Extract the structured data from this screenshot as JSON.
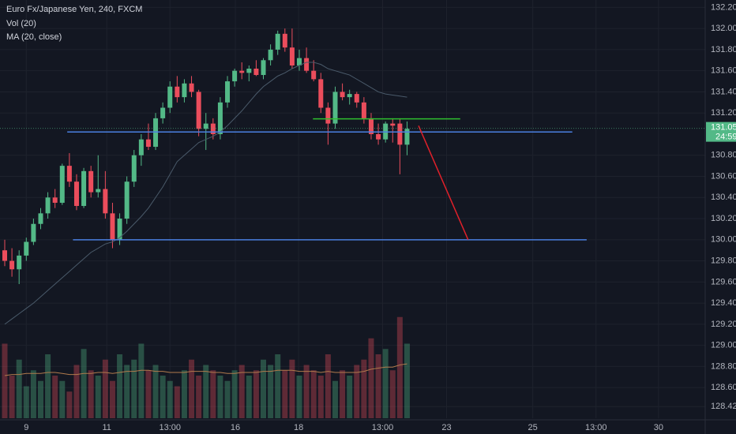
{
  "chart_data": {
    "type": "candlestick",
    "title": "Euro Fx/Japanese Yen, 240, FXCM",
    "indicators": [
      "Vol (20)",
      "MA (20, close)"
    ],
    "open": [
      129.9,
      129.8,
      129.72,
      129.85,
      129.98,
      130.15,
      130.25,
      130.4,
      130.35,
      130.7,
      130.55,
      130.32,
      130.65,
      130.45,
      130.48,
      130.25,
      130.0,
      130.2,
      130.55,
      130.8,
      130.95,
      130.88,
      131.15,
      131.25,
      131.45,
      131.35,
      131.48,
      131.4,
      131.05,
      131.1,
      131.0,
      131.3,
      131.5,
      131.6,
      131.58,
      131.62,
      131.56,
      131.7,
      131.8,
      131.95,
      131.82,
      131.65,
      131.72,
      131.6,
      131.52,
      131.25,
      131.1,
      131.4,
      131.35,
      131.38,
      131.3,
      131.15,
      131.0,
      130.95,
      131.1,
      131.1,
      130.9
    ],
    "high": [
      130.0,
      129.92,
      129.9,
      130.02,
      130.2,
      130.3,
      130.45,
      130.48,
      130.72,
      130.82,
      130.62,
      130.68,
      130.7,
      130.8,
      130.65,
      130.35,
      130.25,
      130.6,
      130.85,
      131.0,
      131.1,
      131.2,
      131.3,
      131.5,
      131.55,
      131.52,
      131.55,
      131.42,
      131.2,
      131.15,
      131.35,
      131.55,
      131.62,
      131.68,
      131.65,
      131.7,
      131.72,
      131.85,
      131.98,
      132.0,
      132.0,
      131.8,
      131.82,
      131.7,
      131.58,
      131.3,
      131.45,
      131.48,
      131.42,
      131.4,
      131.35,
      131.2,
      131.1,
      131.12,
      131.15,
      131.15,
      131.12
    ],
    "low": [
      129.75,
      129.65,
      129.58,
      129.8,
      129.95,
      130.1,
      130.2,
      130.3,
      130.33,
      130.5,
      130.28,
      130.3,
      130.4,
      130.4,
      130.2,
      129.92,
      129.95,
      130.15,
      130.5,
      130.7,
      130.85,
      130.85,
      131.1,
      131.2,
      131.3,
      131.3,
      131.35,
      130.98,
      130.85,
      130.95,
      130.95,
      131.25,
      131.45,
      131.52,
      131.5,
      131.55,
      131.52,
      131.65,
      131.75,
      131.78,
      131.62,
      131.6,
      131.58,
      131.5,
      131.2,
      130.9,
      131.05,
      131.32,
      131.28,
      131.25,
      131.1,
      130.95,
      130.9,
      130.92,
      130.92,
      130.62,
      130.8
    ],
    "close": [
      129.8,
      129.72,
      129.85,
      129.98,
      130.15,
      130.25,
      130.4,
      130.35,
      130.7,
      130.55,
      130.32,
      130.65,
      130.45,
      130.48,
      130.25,
      130.0,
      130.2,
      130.55,
      130.8,
      130.95,
      130.88,
      131.15,
      131.25,
      131.45,
      131.35,
      131.48,
      131.4,
      131.05,
      131.1,
      131.0,
      131.3,
      131.5,
      131.6,
      131.58,
      131.62,
      131.56,
      131.7,
      131.8,
      131.95,
      131.82,
      131.65,
      131.72,
      131.6,
      131.52,
      131.25,
      131.1,
      131.4,
      131.35,
      131.38,
      131.3,
      131.15,
      131.0,
      130.95,
      131.1,
      131.08,
      130.9,
      131.05
    ],
    "ma": [
      129.2,
      129.25,
      129.3,
      129.35,
      129.4,
      129.46,
      129.52,
      129.58,
      129.64,
      129.7,
      129.76,
      129.82,
      129.88,
      129.92,
      129.96,
      129.98,
      130.02,
      130.08,
      130.15,
      130.22,
      130.3,
      130.4,
      130.5,
      130.62,
      130.74,
      130.8,
      130.86,
      130.92,
      130.95,
      130.98,
      131.02,
      131.08,
      131.15,
      131.22,
      131.3,
      131.38,
      131.45,
      131.5,
      131.55,
      131.58,
      131.62,
      131.65,
      131.68,
      131.68,
      131.66,
      131.62,
      131.6,
      131.58,
      131.56,
      131.52,
      131.48,
      131.44,
      131.4,
      131.38,
      131.37,
      131.36,
      131.35
    ],
    "volume": [
      70,
      40,
      55,
      30,
      45,
      35,
      60,
      40,
      35,
      25,
      50,
      65,
      45,
      40,
      55,
      35,
      60,
      50,
      55,
      70,
      45,
      50,
      40,
      35,
      30,
      45,
      55,
      40,
      50,
      45,
      40,
      35,
      45,
      50,
      40,
      45,
      55,
      50,
      60,
      45,
      55,
      40,
      50,
      45,
      40,
      60,
      35,
      45,
      40,
      50,
      55,
      75,
      60,
      65,
      45,
      95,
      70
    ],
    "volume_ma": [
      40,
      41,
      41,
      42,
      42,
      42,
      43,
      43,
      42,
      41,
      41,
      42,
      42,
      43,
      43,
      42,
      43,
      44,
      44,
      45,
      45,
      44,
      44,
      43,
      43,
      43,
      44,
      44,
      44,
      43,
      43,
      42,
      42,
      43,
      43,
      43,
      44,
      44,
      45,
      45,
      45,
      44,
      44,
      44,
      43,
      44,
      43,
      43,
      43,
      43,
      44,
      46,
      47,
      48,
      48,
      50,
      51
    ],
    "up_color": "#53b987",
    "down_color": "#eb4d5c",
    "ylim": [
      128.31,
      132.27
    ],
    "yticks": [
      {
        "value": 132.2,
        "label": "132.200"
      },
      {
        "value": 132.0,
        "label": "132.000"
      },
      {
        "value": 131.8,
        "label": "131.800"
      },
      {
        "value": 131.6,
        "label": "131.600"
      },
      {
        "value": 131.4,
        "label": "131.400"
      },
      {
        "value": 131.2,
        "label": "131.200"
      },
      {
        "value": 130.8,
        "label": "130.800"
      },
      {
        "value": 130.6,
        "label": "130.600"
      },
      {
        "value": 130.4,
        "label": "130.400"
      },
      {
        "value": 130.2,
        "label": "130.200"
      },
      {
        "value": 130.0,
        "label": "130.000"
      },
      {
        "value": 129.8,
        "label": "129.800"
      },
      {
        "value": 129.6,
        "label": "129.600"
      },
      {
        "value": 129.4,
        "label": "129.400"
      },
      {
        "value": 129.2,
        "label": "129.200"
      },
      {
        "value": 129.0,
        "label": "129.000"
      },
      {
        "value": 128.8,
        "label": "128.800"
      },
      {
        "value": 128.6,
        "label": "128.600"
      },
      {
        "value": 128.42,
        "label": "128.420"
      }
    ],
    "xlim": [
      -0.66,
      97.5
    ],
    "xticks": [
      {
        "value": 3,
        "label": "9"
      },
      {
        "value": 14.2,
        "label": "11"
      },
      {
        "value": 23,
        "label": "13:00"
      },
      {
        "value": 32.1,
        "label": "16"
      },
      {
        "value": 40.9,
        "label": "18"
      },
      {
        "value": 52.6,
        "label": "13:00"
      },
      {
        "value": 61.5,
        "label": "23"
      },
      {
        "value": 73.5,
        "label": "25"
      },
      {
        "value": 82.3,
        "label": "13:00"
      },
      {
        "value": 91,
        "label": "30"
      }
    ],
    "last_price": {
      "value": 131.055,
      "label": "131.055"
    },
    "countdown": "24:59",
    "drawings": [
      {
        "color": "#4a7fe0",
        "x": [
          8.7,
          79
        ],
        "y": [
          131.02,
          131.02
        ]
      },
      {
        "color": "#4a7fe0",
        "x": [
          9.5,
          81
        ],
        "y": [
          130.0,
          130.0
        ]
      },
      {
        "color": "#2fbf2f",
        "x": [
          42.9,
          63.4
        ],
        "y": [
          131.145,
          131.145
        ]
      },
      {
        "color": "#e0202a",
        "x": [
          57.6,
          64.5
        ],
        "y": [
          131.08,
          130.0
        ]
      }
    ]
  }
}
